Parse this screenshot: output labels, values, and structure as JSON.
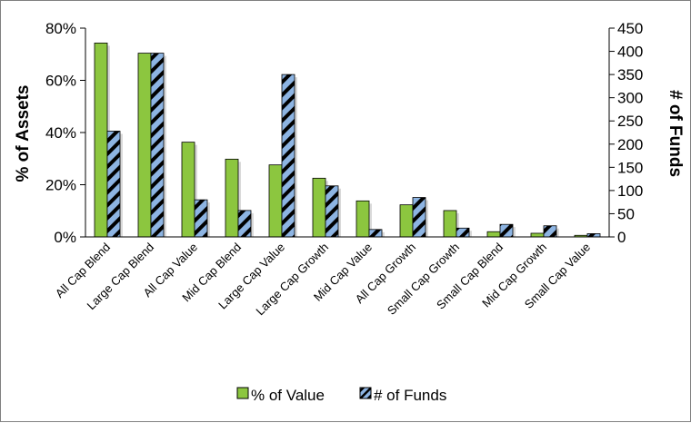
{
  "chart_data": {
    "type": "bar",
    "categories": [
      "All Cap Blend",
      "Large Cap Blend",
      "All Cap Value",
      "Mid Cap Blend",
      "Large Cap Value",
      "Large Cap Growth",
      "Mid Cap Value",
      "All Cap Growth",
      "Small Cap Growth",
      "Small Cap Blend",
      "Mid Cap Growth",
      "Small Cap Value"
    ],
    "series": [
      {
        "name": "% of Value",
        "axis": "left",
        "color": "#8cc63f",
        "values": [
          74.3,
          70.4,
          36.3,
          29.8,
          27.6,
          22.5,
          13.8,
          12.3,
          10.1,
          2.0,
          1.4,
          0.6
        ]
      },
      {
        "name": "# of Funds",
        "axis": "right",
        "color": "#8db4e2",
        "pattern": "diagonal-stripes",
        "values": [
          228,
          396,
          80,
          57,
          350,
          110,
          16,
          85,
          19,
          27,
          24,
          7
        ]
      }
    ],
    "ylabel": "% of Assets",
    "y2label": "# of Funds",
    "ylim": [
      0,
      80
    ],
    "y2lim": [
      0,
      450
    ],
    "yticks": [
      "0%",
      "20%",
      "40%",
      "60%",
      "80%"
    ],
    "y2ticks": [
      "0",
      "50",
      "100",
      "150",
      "200",
      "250",
      "300",
      "350",
      "400",
      "450"
    ],
    "grid": false,
    "legend_position": "bottom"
  }
}
